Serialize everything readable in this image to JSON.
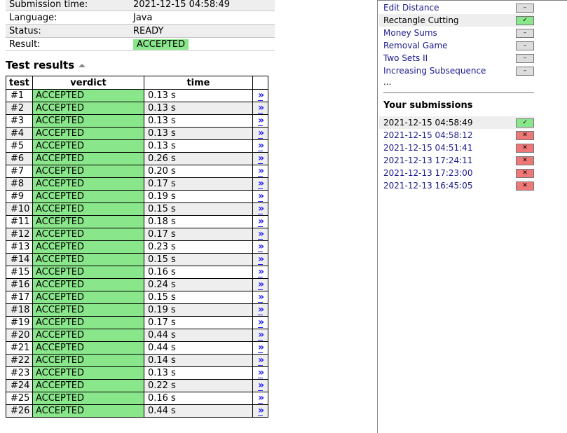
{
  "info": {
    "submission_time_label": "Submission time:",
    "submission_time": "2021-12-15 04:58:49",
    "language_label": "Language:",
    "language": "Java",
    "status_label": "Status:",
    "status": "READY",
    "result_label": "Result:",
    "result": "ACCEPTED"
  },
  "test_results": {
    "title": "Test results",
    "headers": [
      "test",
      "verdict",
      "time"
    ],
    "rows": [
      {
        "test": "#1",
        "verdict": "ACCEPTED",
        "time": "0.13 s"
      },
      {
        "test": "#2",
        "verdict": "ACCEPTED",
        "time": "0.13 s"
      },
      {
        "test": "#3",
        "verdict": "ACCEPTED",
        "time": "0.13 s"
      },
      {
        "test": "#4",
        "verdict": "ACCEPTED",
        "time": "0.13 s"
      },
      {
        "test": "#5",
        "verdict": "ACCEPTED",
        "time": "0.13 s"
      },
      {
        "test": "#6",
        "verdict": "ACCEPTED",
        "time": "0.26 s"
      },
      {
        "test": "#7",
        "verdict": "ACCEPTED",
        "time": "0.20 s"
      },
      {
        "test": "#8",
        "verdict": "ACCEPTED",
        "time": "0.17 s"
      },
      {
        "test": "#9",
        "verdict": "ACCEPTED",
        "time": "0.19 s"
      },
      {
        "test": "#10",
        "verdict": "ACCEPTED",
        "time": "0.15 s"
      },
      {
        "test": "#11",
        "verdict": "ACCEPTED",
        "time": "0.18 s"
      },
      {
        "test": "#12",
        "verdict": "ACCEPTED",
        "time": "0.17 s"
      },
      {
        "test": "#13",
        "verdict": "ACCEPTED",
        "time": "0.23 s"
      },
      {
        "test": "#14",
        "verdict": "ACCEPTED",
        "time": "0.15 s"
      },
      {
        "test": "#15",
        "verdict": "ACCEPTED",
        "time": "0.16 s"
      },
      {
        "test": "#16",
        "verdict": "ACCEPTED",
        "time": "0.24 s"
      },
      {
        "test": "#17",
        "verdict": "ACCEPTED",
        "time": "0.15 s"
      },
      {
        "test": "#18",
        "verdict": "ACCEPTED",
        "time": "0.19 s"
      },
      {
        "test": "#19",
        "verdict": "ACCEPTED",
        "time": "0.17 s"
      },
      {
        "test": "#20",
        "verdict": "ACCEPTED",
        "time": "0.44 s"
      },
      {
        "test": "#21",
        "verdict": "ACCEPTED",
        "time": "0.44 s"
      },
      {
        "test": "#22",
        "verdict": "ACCEPTED",
        "time": "0.14 s"
      },
      {
        "test": "#23",
        "verdict": "ACCEPTED",
        "time": "0.13 s"
      },
      {
        "test": "#24",
        "verdict": "ACCEPTED",
        "time": "0.22 s"
      },
      {
        "test": "#25",
        "verdict": "ACCEPTED",
        "time": "0.16 s"
      },
      {
        "test": "#26",
        "verdict": "ACCEPTED",
        "time": "0.44 s"
      }
    ],
    "link_glyph": "»"
  },
  "problems": [
    {
      "name": "Edit Distance",
      "status": "none",
      "mark": "–"
    },
    {
      "name": "Rectangle Cutting",
      "status": "solved",
      "mark": "✓"
    },
    {
      "name": "Money Sums",
      "status": "none",
      "mark": "–"
    },
    {
      "name": "Removal Game",
      "status": "none",
      "mark": "–"
    },
    {
      "name": "Two Sets II",
      "status": "none",
      "mark": "–"
    },
    {
      "name": "Increasing Subsequence",
      "status": "none",
      "mark": "–"
    }
  ],
  "more": "...",
  "submissions": {
    "title": "Your submissions",
    "items": [
      {
        "time": "2021-12-15 04:58:49",
        "status": "accepted",
        "mark": "✓"
      },
      {
        "time": "2021-12-15 04:58:12",
        "status": "failed",
        "mark": "✕"
      },
      {
        "time": "2021-12-15 04:51:41",
        "status": "failed",
        "mark": "✕"
      },
      {
        "time": "2021-12-13 17:24:11",
        "status": "failed",
        "mark": "✕"
      },
      {
        "time": "2021-12-13 17:23:00",
        "status": "failed",
        "mark": "✕"
      },
      {
        "time": "2021-12-13 16:45:05",
        "status": "failed",
        "mark": "✕"
      }
    ]
  },
  "colors": {
    "accepted": "#8ae68a",
    "failed": "#ee7777",
    "neutral": "#dddddd",
    "link": "#1a1a8c"
  }
}
